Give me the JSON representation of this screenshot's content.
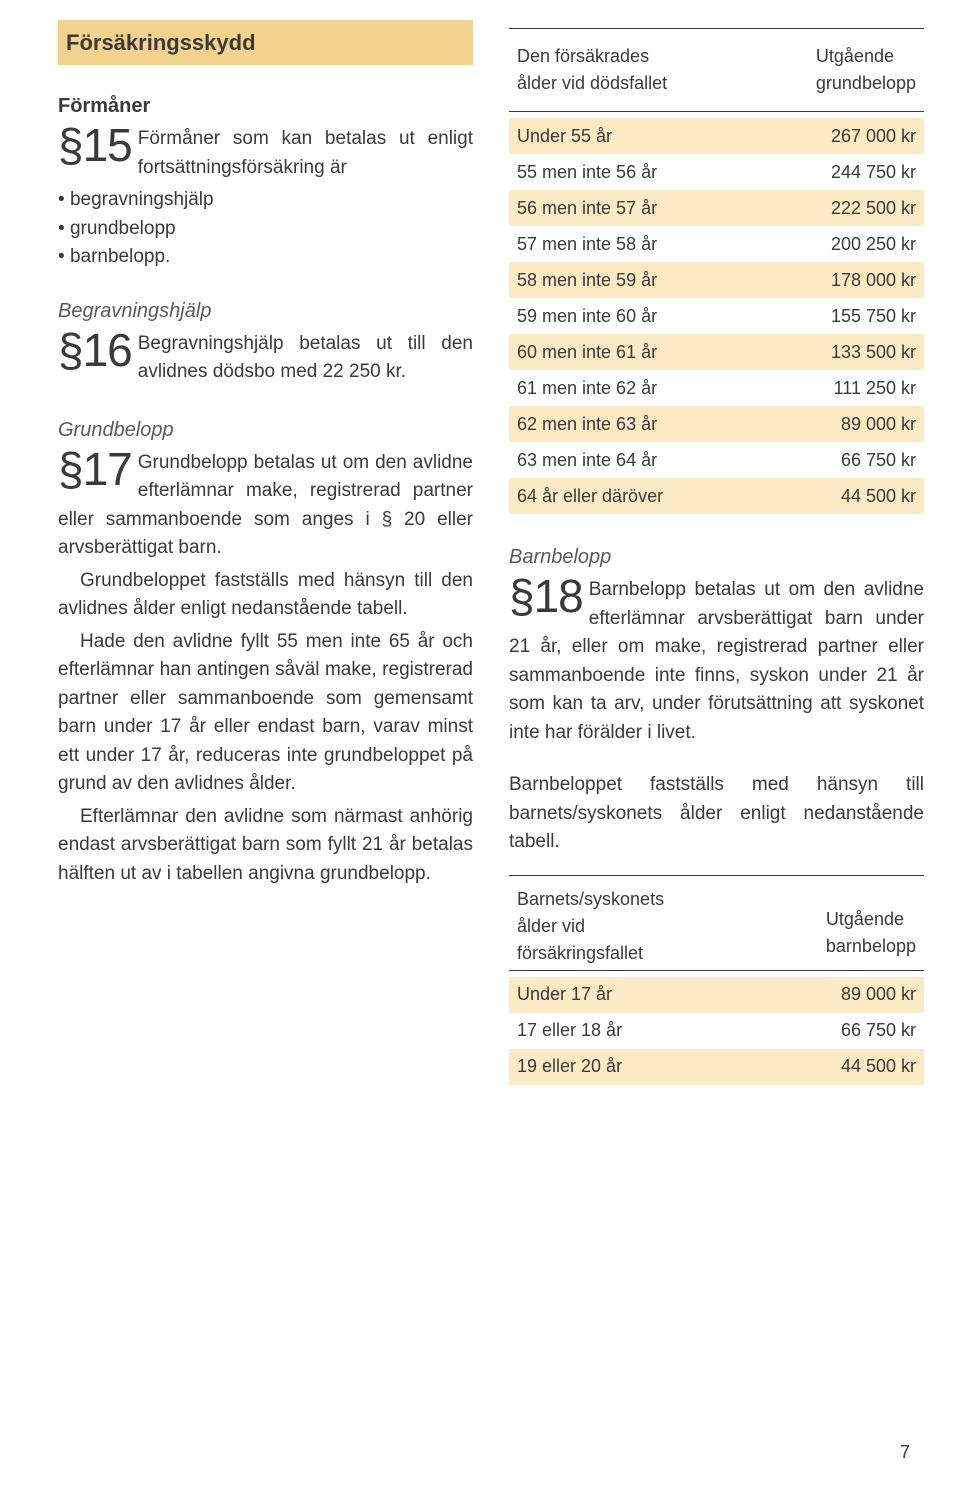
{
  "left": {
    "header": "Försäkringsskydd",
    "sub_formaner": "Förmåner",
    "p15_num": "§15",
    "p15_text": "Förmåner som kan betalas ut enligt fortsättningsför­säkring är",
    "p15_bullets": [
      "begravningshjälp",
      "grundbelopp",
      "barnbelopp."
    ],
    "sub_begrav": "Begravningshjälp",
    "p16_num": "§16",
    "p16_text": "Begravningshjälp betalas ut till den avlidnes dödsbo med 22 250 kr.",
    "sub_grund": "Grundbelopp",
    "p17_num": "§17",
    "p17_text": "Grundbelopp betalas ut om den avlidne efterlämnar make, registrerad partner eller samman­boende som anges i § 20 eller arvsberät­tigat barn.",
    "p17_b": "Grundbeloppet fastställs med hän­syn till den avlidnes ålder enligt nedan­stående tabell.",
    "p17_c": "Hade den avlidne fyllt 55 men inte 65 år och efterlämnar han antingen såväl make, registrerad partner eller sammanboende som gemensamt barn under 17 år eller endast barn, varav minst ett under 17 år, reduceras inte grundbeloppet på grund av den avlid­nes ålder.",
    "p17_d": "Efterlämnar den avlidne som när­mast anhörig endast arvsberättigat barn som fyllt 21 år betalas hälften ut av i tabellen angivna grundbelopp."
  },
  "right": {
    "tbl1_head_left": "Den försäkrades\nålder vid dödsfallet",
    "tbl1_head_right": "Utgående\ngrundbelopp",
    "tbl1_rows": [
      {
        "l": "Under 55 år",
        "r": "267 000 kr",
        "hl": true
      },
      {
        "l": "55 men inte 56 år",
        "r": "244 750 kr",
        "hl": false
      },
      {
        "l": "56 men inte 57 år",
        "r": "222 500 kr",
        "hl": true
      },
      {
        "l": "57 men inte 58 år",
        "r": "200 250 kr",
        "hl": false
      },
      {
        "l": "58 men inte 59 år",
        "r": "178 000 kr",
        "hl": true
      },
      {
        "l": "59 men inte 60 år",
        "r": "155 750 kr",
        "hl": false
      },
      {
        "l": "60 men inte 61 år",
        "r": "133 500 kr",
        "hl": true
      },
      {
        "l": "61 men inte 62 år",
        "r": "111 250 kr",
        "hl": false
      },
      {
        "l": "62 men inte 63 år",
        "r": "89 000 kr",
        "hl": true
      },
      {
        "l": "63 men inte 64 år",
        "r": "66 750 kr",
        "hl": false
      },
      {
        "l": "64 år eller däröver",
        "r": "44 500 kr",
        "hl": true
      }
    ],
    "sub_barn": "Barnbelopp",
    "p18_num": "§18",
    "p18_text": "Barnbelopp betalas ut om den avlidne efterlämnar arvsbe­rättigat barn under 21 år, eller om make, registrerad partner eller sam­manboende inte finns, syskon under 21 år som kan ta arv, under förutsätt­ning att syskonet inte har förälder i livet.",
    "p18_b": "Barnbeloppet fastställs med hänsyn till barnets/syskonets ålder enligt nedan­stående tabell.",
    "tbl2_head_left": "Barnets/syskonets\nålder vid\nförsäkringsfallet",
    "tbl2_head_right": "Utgående\nbarnbelopp",
    "tbl2_rows": [
      {
        "l": "Under 17 år",
        "r": "89 000 kr",
        "hl": true
      },
      {
        "l": "17 eller 18 år",
        "r": "66 750 kr",
        "hl": false
      },
      {
        "l": "19 eller 20 år",
        "r": "44 500 kr",
        "hl": true
      }
    ]
  },
  "pagenum": "7",
  "colors": {
    "header_bg": "#f3d28d",
    "row_hl_bg": "#fbeac3",
    "text": "#3a3a3a",
    "rule": "#3a3a3a"
  }
}
